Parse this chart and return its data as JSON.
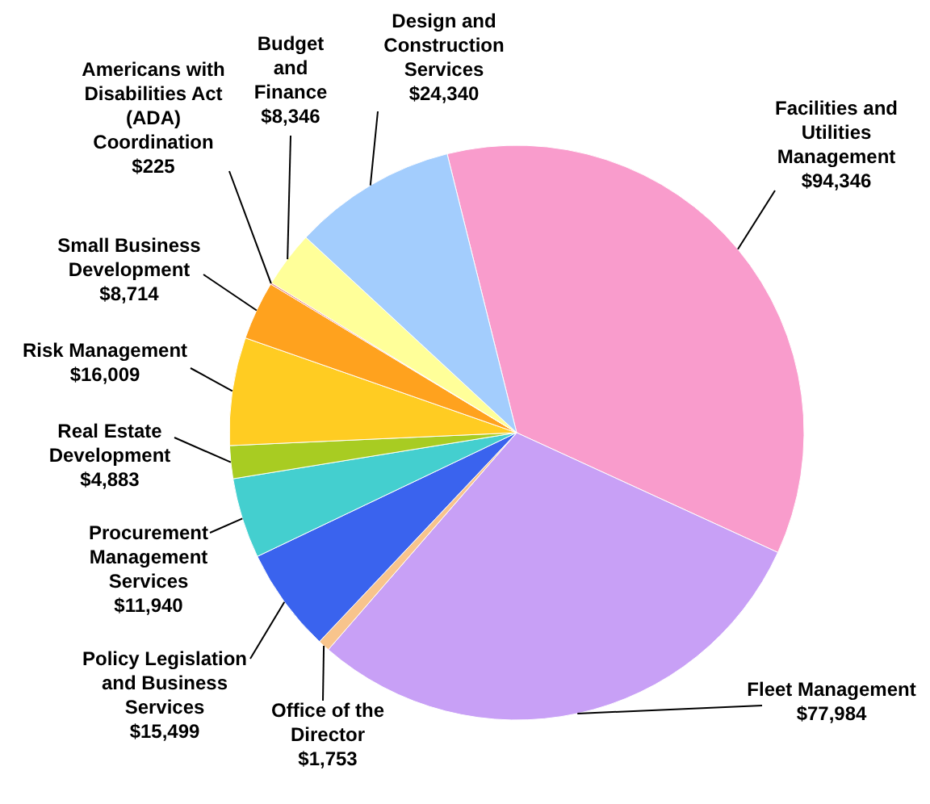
{
  "chart_data": {
    "type": "pie",
    "categories": [
      "Facilities and Utilities Management",
      "Fleet Management",
      "Office of the Director",
      "Policy Legislation and Business Services",
      "Procurement Management Services",
      "Real Estate Development",
      "Risk Management",
      "Small Business Development",
      "Americans with Disabilities Act (ADA) Coordination",
      "Budget and Finance",
      "Design and Construction Services"
    ],
    "values": [
      94346,
      77984,
      1753,
      15499,
      11940,
      4883,
      16009,
      8714,
      225,
      8346,
      24340
    ],
    "value_labels": [
      "$94,346",
      "$77,984",
      "$1,753",
      "$15,499",
      "$11,940",
      "$4,883",
      "$16,009",
      "$8,714",
      "$225",
      "$8,346",
      "$24,340"
    ],
    "colors": [
      "#f99ccc",
      "#c8a0f6",
      "#f8c48c",
      "#3a63ee",
      "#44cfcf",
      "#a8cc22",
      "#ffcc22",
      "#ffa21e",
      "#e07070",
      "#ffff99",
      "#a3cdfd"
    ]
  }
}
